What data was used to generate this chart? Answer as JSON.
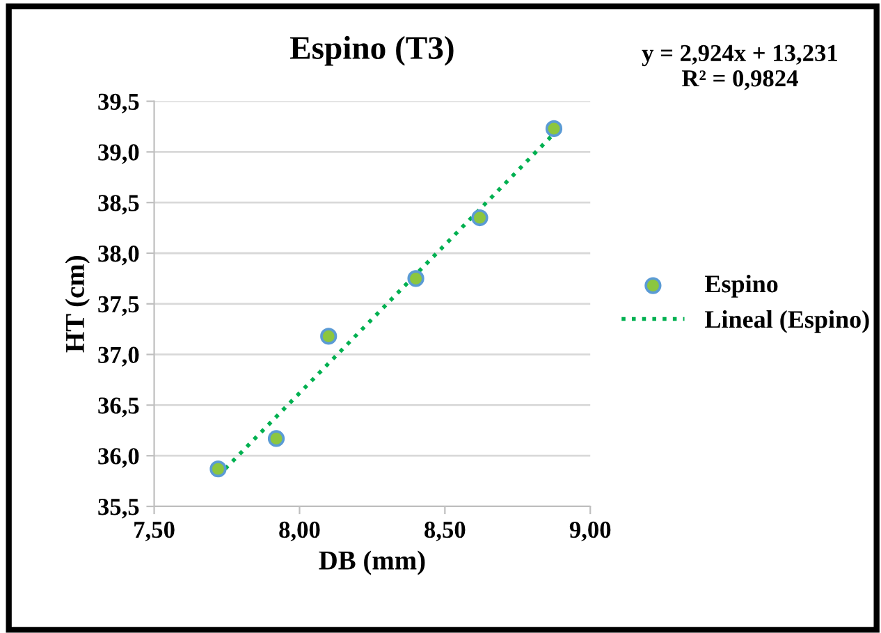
{
  "chart_data": {
    "type": "scatter",
    "title": "Espino (T3)",
    "xlabel": "DB (mm)",
    "ylabel": "HT (cm)",
    "annotations": [
      "y = 2,924x + 13,231\nR² = 0,9824"
    ],
    "series": [
      {
        "name": "Espino",
        "color": "#8cc63f",
        "marker": "circle",
        "x": [
          7.72,
          7.92,
          8.1,
          8.4,
          8.62,
          8.875
        ],
        "values": [
          35.87,
          36.17,
          37.18,
          37.75,
          38.35,
          39.23
        ]
      },
      {
        "name": "Lineal (Espino)",
        "type": "line",
        "color": "#00b050",
        "line_style": "dotted",
        "marker": "none",
        "x": [
          7.72,
          8.875
        ],
        "values": [
          35.8,
          39.18
        ]
      }
    ],
    "xlim": [
      7.5,
      9.0
    ],
    "xticks": [
      {
        "value": 7.5,
        "label": "7,50"
      },
      {
        "value": 8.0,
        "label": "8,00"
      },
      {
        "value": 8.5,
        "label": "8,50"
      },
      {
        "value": 9.0,
        "label": "9,00"
      }
    ],
    "ylim": [
      35.5,
      39.5
    ],
    "yticks": [
      {
        "value": 35.5,
        "label": "35,5"
      },
      {
        "value": 36.0,
        "label": "36,0"
      },
      {
        "value": 36.5,
        "label": "36,5"
      },
      {
        "value": 37.0,
        "label": "37,0"
      },
      {
        "value": 37.5,
        "label": "37,5"
      },
      {
        "value": 38.0,
        "label": "38,0"
      },
      {
        "value": 38.5,
        "label": "38,5"
      },
      {
        "value": 39.0,
        "label": "39,0"
      },
      {
        "value": 39.5,
        "label": "39,5"
      }
    ],
    "grid": "y",
    "legend": "right"
  }
}
